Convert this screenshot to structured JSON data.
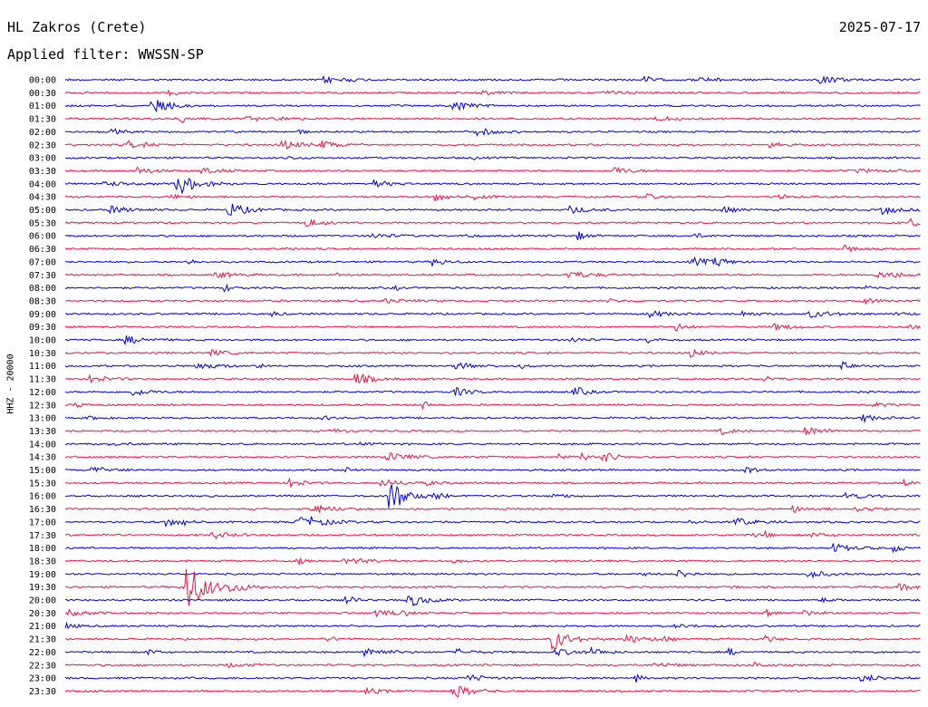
{
  "header": {
    "station": "HL Zakros (Crete)",
    "date": "2025-07-17",
    "filter_label": "Applied filter: WWSSN-SP",
    "channel": "HHZ - 20000"
  },
  "colors": {
    "blue": "#0000dd",
    "red": "#ee1144"
  },
  "chart_data": {
    "type": "helicorder",
    "title": "HL Zakros (Crete)",
    "ylabel": "HHZ - 20000",
    "tick_labels": [
      "00:00",
      "00:30",
      "01:00",
      "01:30",
      "02:00",
      "02:30",
      "03:00",
      "03:30",
      "04:00",
      "04:30",
      "05:00",
      "05:30",
      "06:00",
      "06:30",
      "07:00",
      "07:30",
      "08:00",
      "08:30",
      "09:00",
      "09:30",
      "10:00",
      "10:30",
      "11:00",
      "11:30",
      "12:00",
      "12:30",
      "13:00",
      "13:30",
      "14:00",
      "14:30",
      "15:00",
      "15:30",
      "16:00",
      "16:30",
      "17:00",
      "17:30",
      "18:00",
      "18:30",
      "19:00",
      "19:30",
      "20:00",
      "20:30",
      "21:00",
      "21:30",
      "22:00",
      "22:30",
      "23:00",
      "23:30"
    ],
    "trace_colors": [
      "blue",
      "red"
    ],
    "notable_events": [
      {
        "trace": "04:00",
        "position": 0.13,
        "amplitude": 14
      },
      {
        "trace": "05:00",
        "position": 0.19,
        "amplitude": 9
      },
      {
        "trace": "11:30",
        "position": 0.34,
        "amplitude": 6
      },
      {
        "trace": "16:00",
        "position": 0.38,
        "amplitude": 14
      },
      {
        "trace": "17:00",
        "position": 0.27,
        "amplitude": 6
      },
      {
        "trace": "19:30",
        "position": 0.14,
        "amplitude": 34
      },
      {
        "trace": "20:00",
        "position": 0.4,
        "amplitude": 8
      },
      {
        "trace": "21:30",
        "position": 0.57,
        "amplitude": 10
      },
      {
        "trace": "22:00",
        "position": 0.35,
        "amplitude": 6
      }
    ]
  }
}
